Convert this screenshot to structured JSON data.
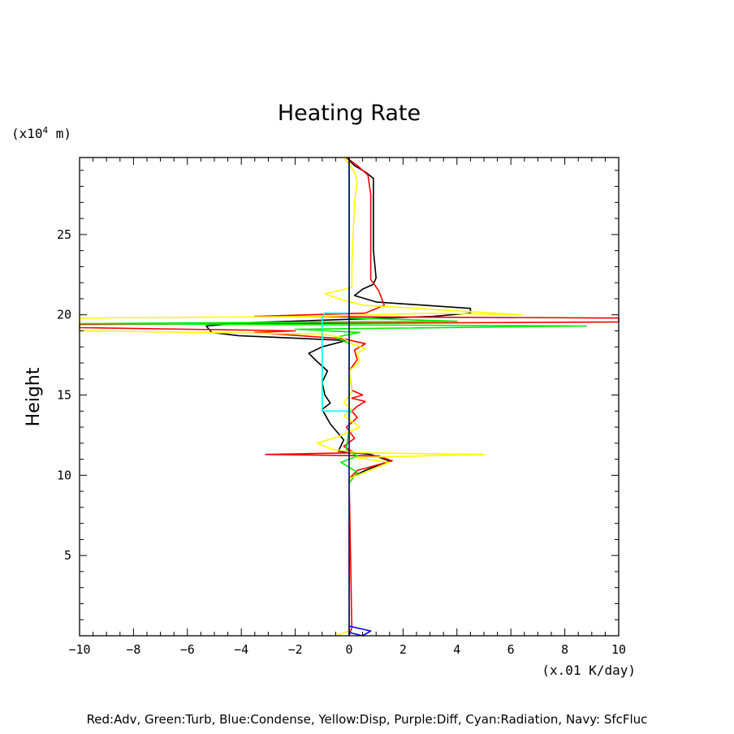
{
  "chart_data": {
    "type": "line",
    "title": "Heating Rate",
    "y_unit": "(x10",
    "y_unit_exp": "4",
    "y_unit_tail": " m)",
    "xlabel": "(x.01 K/day)",
    "ylabel": "Height",
    "xlim": [
      -10,
      10
    ],
    "ylim": [
      0,
      29.8
    ],
    "xticks": [
      -10,
      -8,
      -6,
      -4,
      -2,
      0,
      2,
      4,
      6,
      8,
      10
    ],
    "yticks": [
      5,
      10,
      15,
      20,
      25
    ],
    "grid": false,
    "legend_text": "Red:Adv, Green:Turb, Blue:Condense, Yellow:Disp, Purple:Diff, Cyan:Radiation, Navy: SfcFluc",
    "series": [
      {
        "color": "#000000",
        "points": [
          [
            0,
            0
          ],
          [
            0,
            9.8
          ],
          [
            0.6,
            10.3
          ],
          [
            1.5,
            10.9
          ],
          [
            0.8,
            11.3
          ],
          [
            -0.4,
            11.5
          ],
          [
            -0.2,
            12.2
          ],
          [
            -0.7,
            13.2
          ],
          [
            -0.9,
            13.8
          ],
          [
            -1.0,
            14.1
          ],
          [
            -0.7,
            14.5
          ],
          [
            -0.9,
            15.0
          ],
          [
            -1.0,
            15.8
          ],
          [
            -0.8,
            16.5
          ],
          [
            -1.2,
            17.1
          ],
          [
            -1.5,
            17.6
          ],
          [
            -1.0,
            18.0
          ],
          [
            -0.1,
            18.4
          ],
          [
            -4.1,
            18.7
          ],
          [
            -5.1,
            18.9
          ],
          [
            -5.3,
            19.3
          ],
          [
            -3.9,
            19.5
          ],
          [
            -0.3,
            19.7
          ],
          [
            3.1,
            19.9
          ],
          [
            4.5,
            20.1
          ],
          [
            4.5,
            20.4
          ],
          [
            1.0,
            20.8
          ],
          [
            0.2,
            21.2
          ],
          [
            0.5,
            21.6
          ],
          [
            0.9,
            21.9
          ],
          [
            1.0,
            22.3
          ],
          [
            0.9,
            24
          ],
          [
            0.9,
            28.5
          ],
          [
            0.6,
            28.9
          ],
          [
            0.2,
            29.3
          ],
          [
            -0.1,
            29.8
          ]
        ]
      },
      {
        "color": "#ff0000",
        "points": [
          [
            0,
            0
          ],
          [
            0.1,
            0.5
          ],
          [
            0,
            9.8
          ],
          [
            0.3,
            10.3
          ],
          [
            1.6,
            10.9
          ],
          [
            1.1,
            11.2
          ],
          [
            -3.1,
            11.3
          ],
          [
            0.2,
            11.4
          ],
          [
            -0.2,
            11.8
          ],
          [
            0.2,
            12.3
          ],
          [
            -0.1,
            13.0
          ],
          [
            0.3,
            13.6
          ],
          [
            0.1,
            14.0
          ],
          [
            0.3,
            14.3
          ],
          [
            0.6,
            14.6
          ],
          [
            0.1,
            14.8
          ],
          [
            0.5,
            15.0
          ],
          [
            0.1,
            15.3
          ],
          [
            0,
            16.5
          ],
          [
            0.3,
            17.2
          ],
          [
            0.2,
            17.8
          ],
          [
            0.6,
            18.2
          ],
          [
            -0.2,
            18.5
          ],
          [
            -3.5,
            18.9
          ],
          [
            -2.0,
            19.0
          ],
          [
            -10,
            19.2
          ],
          [
            -10,
            19.4
          ],
          [
            10,
            19.55
          ],
          [
            10,
            19.8
          ],
          [
            -3.5,
            19.9
          ],
          [
            0.6,
            20.1
          ],
          [
            1.3,
            20.6
          ],
          [
            1.1,
            21.5
          ],
          [
            0.8,
            22.2
          ],
          [
            0.8,
            27.5
          ],
          [
            0.7,
            28.7
          ],
          [
            0.3,
            29.3
          ],
          [
            -0.1,
            29.8
          ]
        ]
      },
      {
        "color": "#00ee00",
        "points": [
          [
            0,
            0
          ],
          [
            0,
            9.5
          ],
          [
            0.3,
            10.2
          ],
          [
            -0.3,
            10.8
          ],
          [
            0.3,
            11.2
          ],
          [
            -0.1,
            11.6
          ],
          [
            0,
            13
          ],
          [
            0,
            18.2
          ],
          [
            -0.5,
            18.6
          ],
          [
            0.4,
            18.9
          ],
          [
            -2.0,
            19.1
          ],
          [
            8.8,
            19.3
          ],
          [
            -10,
            19.45
          ],
          [
            4.0,
            19.6
          ],
          [
            2.0,
            19.7
          ],
          [
            0,
            19.8
          ],
          [
            0,
            29.8
          ]
        ]
      },
      {
        "color": "#ffff00",
        "points": [
          [
            -0.5,
            0
          ],
          [
            0,
            0.3
          ],
          [
            0,
            9.8
          ],
          [
            0.6,
            10.2
          ],
          [
            1.5,
            10.8
          ],
          [
            0.2,
            11.1
          ],
          [
            5.0,
            11.3
          ],
          [
            0.4,
            11.4
          ],
          [
            -0.6,
            11.6
          ],
          [
            -1.2,
            12.0
          ],
          [
            -0.4,
            12.4
          ],
          [
            0.4,
            13.0
          ],
          [
            0,
            13.5
          ],
          [
            -0.2,
            13.7
          ],
          [
            0.1,
            14.1
          ],
          [
            -0.2,
            14.5
          ],
          [
            0.1,
            15.2
          ],
          [
            0,
            16.5
          ],
          [
            0.4,
            17.1
          ],
          [
            0.3,
            17.6
          ],
          [
            0.6,
            17.9
          ],
          [
            0.1,
            18.2
          ],
          [
            -0.3,
            18.6
          ],
          [
            -1.0,
            18.8
          ],
          [
            -10,
            19.0
          ],
          [
            -10,
            19.5
          ],
          [
            -10,
            19.8
          ],
          [
            -1.0,
            19.9
          ],
          [
            3.0,
            20.1
          ],
          [
            6.4,
            20.0
          ],
          [
            0.5,
            20.6
          ],
          [
            -0.2,
            20.9
          ],
          [
            -0.9,
            21.3
          ],
          [
            0.1,
            21.7
          ],
          [
            0.1,
            23
          ],
          [
            0.2,
            27
          ],
          [
            0.3,
            28.3
          ],
          [
            0.2,
            28.9
          ],
          [
            -0.2,
            29.8
          ]
        ]
      },
      {
        "color": "#00ffff",
        "points": [
          [
            -0.1,
            20.1
          ],
          [
            -0.9,
            20.1
          ],
          [
            -1.0,
            19.8
          ],
          [
            -1.0,
            14.0
          ],
          [
            0.1,
            14.0
          ],
          [
            0.0,
            13.8
          ]
        ]
      },
      {
        "color": "#00007a",
        "points": [
          [
            0,
            0
          ],
          [
            0,
            29.8
          ]
        ]
      },
      {
        "color": "#0000ff",
        "points": [
          [
            0,
            0.2
          ],
          [
            0.5,
            0
          ],
          [
            0.8,
            0.3
          ],
          [
            0,
            0.6
          ]
        ]
      }
    ]
  }
}
